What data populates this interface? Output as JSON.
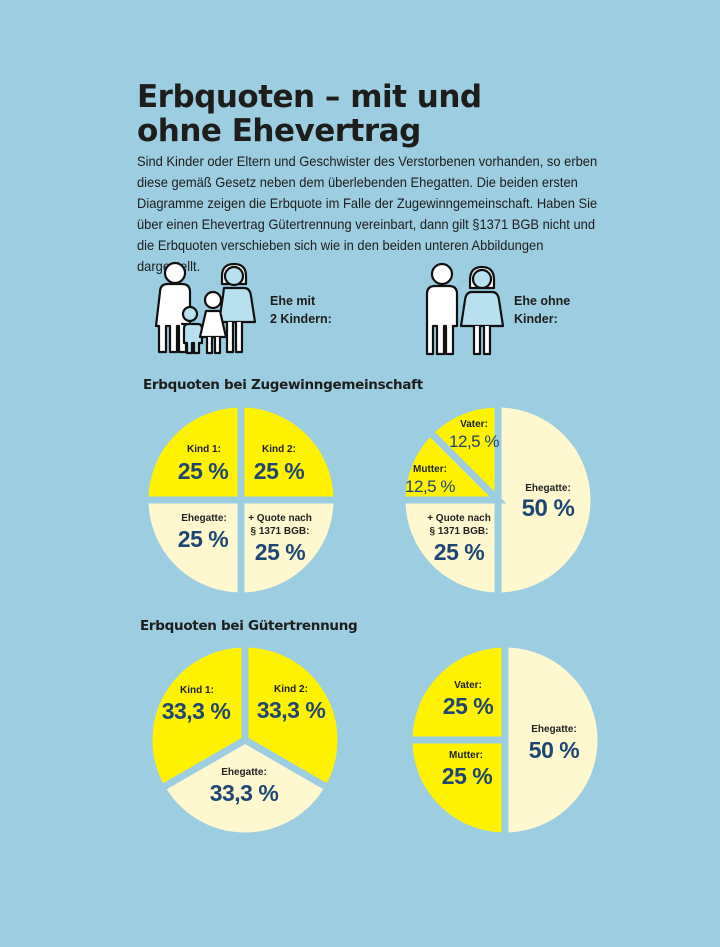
{
  "title_line1": "Erbquoten – mit und",
  "title_line2": "ohne Ehevertrag",
  "intro": "Sind Kinder oder Eltern und Geschwister des Verstorbenen vorhanden, so erben diese gemäß Gesetz neben dem überlebenden Ehegatten. Die beiden ersten Diagramme zeigen die Erbquote im Falle der Zugewinngemeinschaft. Haben Sie über einen Ehevertrag Gütertrennung vereinbart, dann gilt §1371 BGB nicht und die Erbquoten verschieben sich wie in den beiden unteren Abbildungen dargestellt.",
  "family": {
    "with_children_line1": "Ehe mit",
    "with_children_line2": "2 Kindern:",
    "without_children_line1": "Ehe ohne",
    "without_children_line2": "Kinder:",
    "icons": [
      "family-with-two-children-icon",
      "couple-icon"
    ]
  },
  "colors": {
    "background": "#9dcde0",
    "yellow": "#fff200",
    "cream": "#fdf8cf",
    "value_text": "#1f4673"
  },
  "chart_data": [
    {
      "type": "pie",
      "title": "Erbquoten bei Zugewinngemeinschaft",
      "subtitle": "Ehe mit 2 Kindern",
      "slices": [
        {
          "label": "Kind 2:",
          "value": 25,
          "display": "25 %",
          "color": "#fff200"
        },
        {
          "label": "+ Quote nach § 1371 BGB:",
          "label1": "+ Quote nach",
          "label2": "§ 1371 BGB:",
          "value": 25,
          "display": "25 %",
          "color": "#fdf8cf"
        },
        {
          "label": "Ehegatte:",
          "value": 25,
          "display": "25 %",
          "color": "#fdf8cf"
        },
        {
          "label": "Kind 1:",
          "value": 25,
          "display": "25 %",
          "color": "#fff200"
        }
      ]
    },
    {
      "type": "pie",
      "title": "Erbquoten bei Zugewinngemeinschaft",
      "subtitle": "Ehe ohne Kinder",
      "slices": [
        {
          "label": "Ehegatte:",
          "value": 50,
          "display": "50 %",
          "color": "#fdf8cf"
        },
        {
          "label": "+ Quote nach § 1371 BGB:",
          "label1": "+ Quote nach",
          "label2": "§ 1371 BGB:",
          "value": 25,
          "display": "25 %",
          "color": "#fdf8cf"
        },
        {
          "label": "Mutter:",
          "value": 12.5,
          "display": "12,5 %",
          "color": "#fff200"
        },
        {
          "label": "Vater:",
          "value": 12.5,
          "display": "12,5 %",
          "color": "#fff200"
        }
      ]
    },
    {
      "type": "pie",
      "title": "Erbquoten bei Gütertrennung",
      "subtitle": "Ehe mit 2 Kindern",
      "slices": [
        {
          "label": "Kind 2:",
          "value": 33.3,
          "display": "33,3 %",
          "color": "#fff200"
        },
        {
          "label": "Ehegatte:",
          "value": 33.3,
          "display": "33,3 %",
          "color": "#fdf8cf"
        },
        {
          "label": "Kind 1:",
          "value": 33.3,
          "display": "33,3 %",
          "color": "#fff200"
        }
      ]
    },
    {
      "type": "pie",
      "title": "Erbquoten bei Gütertrennung",
      "subtitle": "Ehe ohne Kinder",
      "slices": [
        {
          "label": "Ehegatte:",
          "value": 50,
          "display": "50 %",
          "color": "#fdf8cf"
        },
        {
          "label": "Mutter:",
          "value": 25,
          "display": "25 %",
          "color": "#fff200"
        },
        {
          "label": "Vater:",
          "value": 25,
          "display": "25 %",
          "color": "#fff200"
        }
      ]
    }
  ]
}
